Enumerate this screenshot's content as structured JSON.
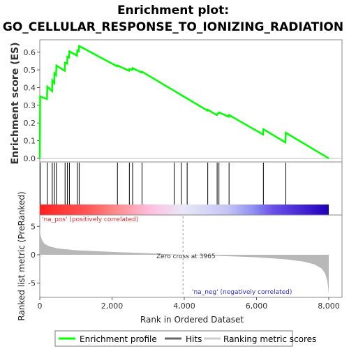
{
  "chart_data": {
    "type": "line",
    "title_line1": "Enrichment plot:",
    "title_line2": "GO_CELLULAR_RESPONSE_TO_IONIZING_RADIATION",
    "es_panel": {
      "ylabel": "Enrichment score (ES)",
      "yticks": [
        "0.0",
        "0.1",
        "0.2",
        "0.3",
        "0.4",
        "0.5",
        "0.6"
      ],
      "ylim": [
        -0.02,
        0.67
      ],
      "xlim": [
        0,
        8000
      ],
      "series": [
        {
          "color": "#00ff00",
          "x": [
            0,
            10,
            200,
            210,
            340,
            345,
            400,
            405,
            450,
            460,
            690,
            700,
            760,
            765,
            810,
            820,
            1030,
            1040,
            1080,
            1090,
            2140,
            2150,
            2470,
            2480,
            2560,
            2570,
            2820,
            2830,
            4640,
            4650,
            4900,
            4910,
            4950,
            4960,
            5230,
            5240,
            6180,
            6190,
            6800,
            6810,
            8000
          ],
          "y": [
            0.0,
            0.35,
            0.335,
            0.405,
            0.38,
            0.44,
            0.425,
            0.48,
            0.47,
            0.525,
            0.495,
            0.54,
            0.535,
            0.575,
            0.57,
            0.605,
            0.58,
            0.61,
            0.605,
            0.635,
            0.52,
            0.525,
            0.495,
            0.505,
            0.5,
            0.51,
            0.485,
            0.49,
            0.27,
            0.275,
            0.245,
            0.25,
            0.255,
            0.26,
            0.235,
            0.245,
            0.135,
            0.165,
            0.09,
            0.145,
            0.0
          ]
        }
      ]
    },
    "hits_panel": {
      "hit_ranks": [
        10,
        210,
        345,
        405,
        460,
        700,
        765,
        820,
        1040,
        1090,
        2150,
        2480,
        2570,
        2830,
        3720,
        3920,
        4080,
        4650,
        4910,
        4960,
        5240,
        6190,
        6810
      ]
    },
    "color_bar": {
      "stops": [
        {
          "rank": 0,
          "color": "#ff2020"
        },
        {
          "rank": 1300,
          "color": "#ff5555"
        },
        {
          "rank": 2100,
          "color": "#ff8a8a"
        },
        {
          "rank": 3000,
          "color": "#ffbcdc"
        },
        {
          "rank": 3965,
          "color": "#e8e8f8"
        },
        {
          "rank": 5200,
          "color": "#c4c4f4"
        },
        {
          "rank": 5900,
          "color": "#9090f0"
        },
        {
          "rank": 6450,
          "color": "#6a50e8"
        },
        {
          "rank": 7650,
          "color": "#3010c8"
        },
        {
          "rank": 8000,
          "color": "#2000b0"
        }
      ],
      "pos_label": "'na_pos' (positively correlated)",
      "neg_label": "'na_neg' (negatively correlated)",
      "pos_color": "#e03030",
      "neg_color": "#3030d0"
    },
    "metric_panel": {
      "ylabel": "Ranked list metric (PreRanked)",
      "yticks": [
        "-5",
        "0",
        "5"
      ],
      "ylim": [
        -7.5,
        7
      ],
      "xlabel": "Rank in Ordered Dataset",
      "xticks": [
        "0",
        "2,000",
        "4,000",
        "6,000",
        "8,000"
      ],
      "xtick_values": [
        0,
        2000,
        4000,
        6000,
        8000
      ],
      "zero_cross_label": "Zero cross at 3965",
      "zero_cross": 3965,
      "metric_points": [
        {
          "rank": 0,
          "value": 4.6
        },
        {
          "rank": 20,
          "value": 3.5
        },
        {
          "rank": 60,
          "value": 2.6
        },
        {
          "rank": 120,
          "value": 2.0
        },
        {
          "rank": 250,
          "value": 1.5
        },
        {
          "rank": 500,
          "value": 1.1
        },
        {
          "rank": 1000,
          "value": 0.8
        },
        {
          "rank": 2000,
          "value": 0.5
        },
        {
          "rank": 3000,
          "value": 0.25
        },
        {
          "rank": 3965,
          "value": 0.0
        },
        {
          "rank": 5000,
          "value": -0.2
        },
        {
          "rank": 6000,
          "value": -0.45
        },
        {
          "rank": 6800,
          "value": -0.8
        },
        {
          "rank": 7300,
          "value": -1.2
        },
        {
          "rank": 7600,
          "value": -1.7
        },
        {
          "rank": 7800,
          "value": -2.4
        },
        {
          "rank": 7900,
          "value": -3.3
        },
        {
          "rank": 7960,
          "value": -4.6
        },
        {
          "rank": 7990,
          "value": -6.2
        },
        {
          "rank": 8000,
          "value": -7.0
        }
      ],
      "fill_color": "#b8b8b8"
    },
    "legend": {
      "items": [
        {
          "label": "Enrichment profile",
          "color": "#00ff00"
        },
        {
          "label": "Hits",
          "color": "#666666"
        },
        {
          "label": "Ranking metric scores",
          "color": "#cccccc"
        }
      ]
    }
  }
}
